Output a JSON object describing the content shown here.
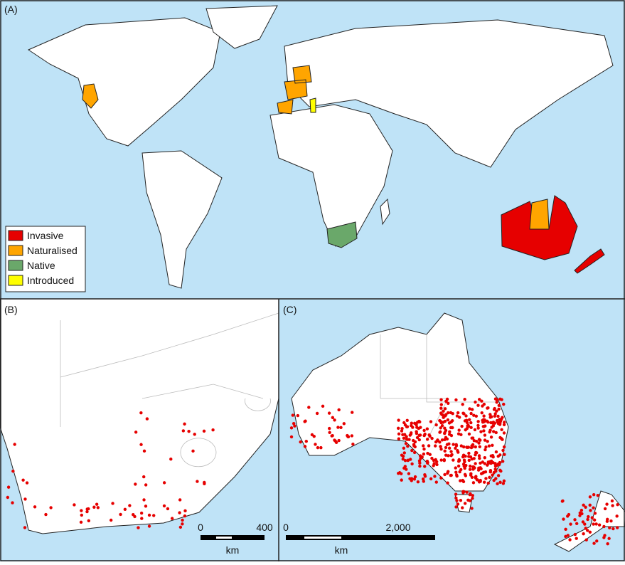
{
  "panels": [
    {
      "label": "(A)"
    },
    {
      "label": "(B)",
      "scale_bar": {
        "labels": [
          "0",
          "400"
        ],
        "unit": "km"
      }
    },
    {
      "label": "(C)",
      "scale_bar": {
        "labels": [
          "0",
          "2,000"
        ],
        "unit": "km"
      }
    }
  ],
  "legend": {
    "items": [
      {
        "label": "Invasive",
        "color": "#e60000"
      },
      {
        "label": "Naturalised",
        "color": "#ffa500"
      },
      {
        "label": "Native",
        "color": "#6aa86a"
      },
      {
        "label": "Introduced",
        "color": "#ffff00"
      }
    ]
  }
}
